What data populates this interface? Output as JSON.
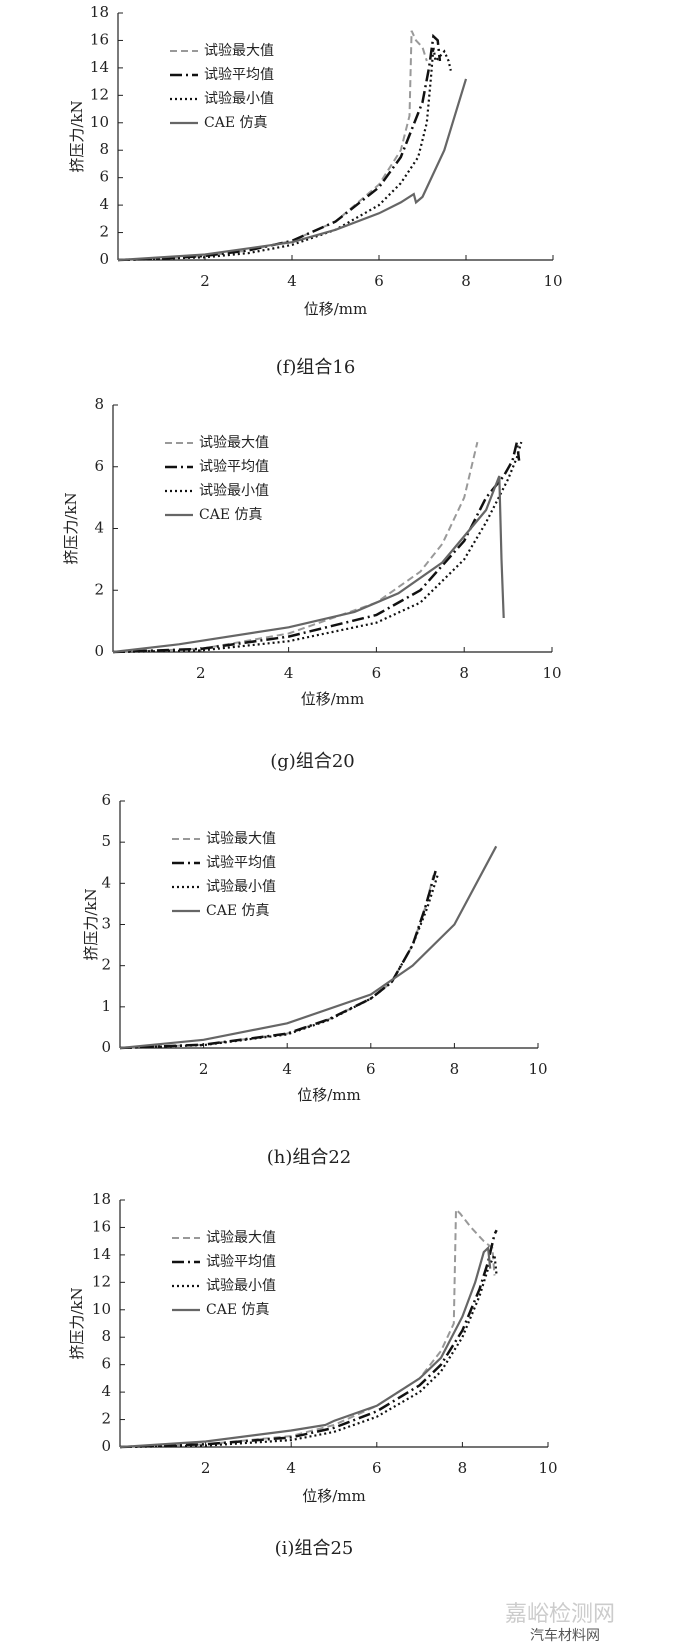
{
  "chart_data": [
    {
      "type": "line",
      "title": "(f)组合16",
      "x_label": "位移/mm",
      "y_label": "挤压力/kN",
      "xlim": [
        0,
        10
      ],
      "ylim": [
        0,
        18
      ],
      "xticks": [
        2,
        4,
        6,
        8,
        10
      ],
      "yticks": [
        0,
        2,
        4,
        6,
        8,
        10,
        12,
        14,
        16,
        18
      ],
      "legend": "upper left",
      "series": [
        {
          "name": "试验最大值",
          "color": "#999999",
          "style": "dashed",
          "x": [
            0,
            1,
            2,
            3,
            4,
            5,
            6,
            6.5,
            6.7,
            6.75,
            6.85,
            7.0,
            7.1
          ],
          "values": [
            0,
            0.1,
            0.3,
            0.7,
            1.4,
            2.8,
            5.5,
            8,
            10.5,
            16.7,
            16.0,
            15.5,
            14.5
          ]
        },
        {
          "name": "试验平均值",
          "color": "#111111",
          "style": "dashdot",
          "x": [
            0,
            1,
            2,
            3,
            4,
            5,
            6,
            6.5,
            7,
            7.15,
            7.25,
            7.35,
            7.4
          ],
          "values": [
            0,
            0.1,
            0.3,
            0.7,
            1.4,
            2.8,
            5.3,
            7.5,
            11.5,
            14,
            16.3,
            16,
            14.5
          ]
        },
        {
          "name": "试验最小值",
          "color": "#111111",
          "style": "dotted",
          "x": [
            0,
            2,
            3,
            4,
            5,
            6,
            6.5,
            6.9,
            7.1,
            7.2,
            7.25,
            7.3,
            7.5,
            7.6,
            7.65
          ],
          "values": [
            0,
            0.2,
            0.5,
            1.1,
            2.2,
            4,
            5.6,
            7.5,
            10,
            13.5,
            15.5,
            14.5,
            15.2,
            14.5,
            13.8
          ]
        },
        {
          "name": "CAE 仿真",
          "color": "#666666",
          "style": "solid",
          "x": [
            0,
            2,
            4,
            5,
            6,
            6.5,
            6.8,
            6.85,
            7,
            7.5,
            8
          ],
          "values": [
            0,
            0.4,
            1.3,
            2.2,
            3.4,
            4.2,
            4.8,
            4.2,
            4.6,
            8,
            13.2
          ]
        }
      ]
    },
    {
      "type": "line",
      "title": "(g)组合20",
      "x_label": "位移/mm",
      "y_label": "挤压力/kN",
      "xlim": [
        0,
        10
      ],
      "ylim": [
        0,
        8
      ],
      "xticks": [
        2,
        4,
        6,
        8,
        10
      ],
      "yticks": [
        0,
        2,
        4,
        6,
        8
      ],
      "legend": "upper left",
      "series": [
        {
          "name": "试验最大值",
          "color": "#999999",
          "style": "dashed",
          "x": [
            0,
            2,
            4,
            6,
            7,
            7.5,
            8,
            8.2,
            8.3
          ],
          "values": [
            0,
            0.1,
            0.6,
            1.6,
            2.6,
            3.5,
            5,
            6.2,
            6.8
          ]
        },
        {
          "name": "试验平均值",
          "color": "#111111",
          "style": "dashdot",
          "x": [
            0,
            2,
            4,
            6,
            7,
            8,
            8.5,
            8.9,
            9.1,
            9.2,
            9.25
          ],
          "values": [
            0,
            0.1,
            0.5,
            1.2,
            2,
            3.6,
            5,
            5.7,
            6.2,
            6.8,
            6.2
          ]
        },
        {
          "name": "试验最小值",
          "color": "#111111",
          "style": "dotted",
          "x": [
            0,
            2,
            4,
            6,
            7,
            8,
            8.5,
            9,
            9.2,
            9.3
          ],
          "values": [
            0,
            0.05,
            0.35,
            0.95,
            1.6,
            3,
            4.2,
            5.6,
            6.3,
            6.8
          ]
        },
        {
          "name": "CAE 仿真",
          "color": "#666666",
          "style": "solid",
          "x": [
            0,
            1.5,
            4,
            5.5,
            6.5,
            7.5,
            8.5,
            8.8,
            8.85,
            8.9
          ],
          "values": [
            0,
            0.25,
            0.8,
            1.3,
            1.9,
            2.9,
            4.6,
            5.7,
            3,
            1.1
          ]
        }
      ]
    },
    {
      "type": "line",
      "title": "(h)组合22",
      "x_label": "位移/mm",
      "y_label": "挤压力/kN",
      "xlim": [
        0,
        10
      ],
      "ylim": [
        0,
        6
      ],
      "xticks": [
        2,
        4,
        6,
        8,
        10
      ],
      "yticks": [
        0,
        1,
        2,
        3,
        4,
        5,
        6
      ],
      "legend": "upper left",
      "series": [
        {
          "name": "试验最大值",
          "color": "#999999",
          "style": "dashed",
          "x": [
            0,
            2,
            4,
            5,
            6,
            6.5,
            7,
            7.3,
            7.5
          ],
          "values": [
            0,
            0.08,
            0.35,
            0.7,
            1.2,
            1.6,
            2.5,
            3.4,
            4.2
          ]
        },
        {
          "name": "试验平均值",
          "color": "#111111",
          "style": "dashdot",
          "x": [
            0,
            2,
            4,
            5,
            6,
            6.5,
            7,
            7.3,
            7.55
          ],
          "values": [
            0,
            0.08,
            0.35,
            0.7,
            1.2,
            1.6,
            2.5,
            3.4,
            4.3
          ]
        },
        {
          "name": "试验最小值",
          "color": "#111111",
          "style": "dotted",
          "x": [
            0,
            2,
            4,
            5,
            6,
            6.5,
            7,
            7.35,
            7.6
          ],
          "values": [
            0,
            0.07,
            0.33,
            0.68,
            1.2,
            1.6,
            2.5,
            3.4,
            4.2
          ]
        },
        {
          "name": "CAE 仿真",
          "color": "#666666",
          "style": "solid",
          "x": [
            0,
            2,
            4,
            6,
            7,
            8,
            9
          ],
          "values": [
            0,
            0.2,
            0.6,
            1.3,
            2,
            3,
            4.9
          ]
        }
      ]
    },
    {
      "type": "line",
      "title": "(i)组合25",
      "x_label": "位移/mm",
      "y_label": "挤压力/kN",
      "xlim": [
        0,
        10
      ],
      "ylim": [
        0,
        18
      ],
      "xticks": [
        2,
        4,
        6,
        8,
        10
      ],
      "yticks": [
        0,
        2,
        4,
        6,
        8,
        10,
        12,
        14,
        16,
        18
      ],
      "legend": "upper left",
      "series": [
        {
          "name": "试验最大值",
          "color": "#999999",
          "style": "dashed",
          "x": [
            0,
            2,
            4,
            5,
            6,
            7,
            7.5,
            7.8,
            7.85,
            7.95,
            8.2,
            8.5,
            8.7,
            8.75
          ],
          "values": [
            0,
            0.2,
            0.8,
            1.6,
            3,
            5,
            7,
            9,
            17.3,
            17,
            16,
            15,
            14.5,
            12.5
          ]
        },
        {
          "name": "试验平均值",
          "color": "#111111",
          "style": "dashdot",
          "x": [
            0,
            2,
            4,
            5,
            6,
            7,
            7.5,
            8,
            8.4,
            8.6,
            8.75,
            8.8
          ],
          "values": [
            0,
            0.2,
            0.7,
            1.4,
            2.6,
            4.5,
            6,
            8.5,
            11.5,
            13.5,
            15.5,
            15.8
          ]
        },
        {
          "name": "试验最小值",
          "color": "#111111",
          "style": "dotted",
          "x": [
            0,
            2,
            4,
            5,
            6,
            7,
            7.5,
            8,
            8.4,
            8.6,
            8.75,
            8.8
          ],
          "values": [
            0,
            0.1,
            0.5,
            1.1,
            2.2,
            4,
            5.5,
            8,
            11,
            13,
            14,
            12.5
          ]
        },
        {
          "name": "CAE 仿真",
          "color": "#666666",
          "style": "solid",
          "x": [
            0,
            2,
            4,
            4.8,
            5,
            6,
            7,
            7.5,
            8,
            8.3,
            8.5,
            8.6,
            8.65
          ],
          "values": [
            0,
            0.4,
            1.2,
            1.6,
            1.9,
            3,
            5,
            6.5,
            9.5,
            12,
            14.2,
            14.5,
            13
          ]
        }
      ]
    }
  ],
  "watermark": [
    "嘉峪检测网",
    "汽车材料网"
  ]
}
